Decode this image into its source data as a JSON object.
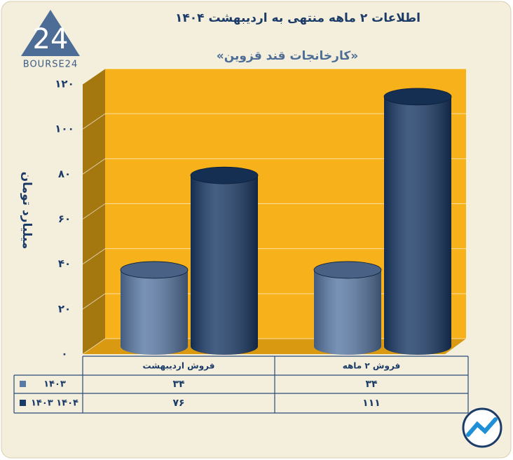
{
  "logo": {
    "mark": "24",
    "name": "BOURSE24"
  },
  "chart_data": {
    "type": "bar",
    "title": "اطلاعات ۲ ماهه منتهی به اردیبهشت ۱۴۰۴",
    "subtitle": "«کارخانجات قند قزوین»",
    "y_label": "میلیارد تومان",
    "categories": [
      "فروش اردیبهشت",
      "فروش ۲  ماهه"
    ],
    "series": [
      {
        "name": "۱۴۰۳",
        "color": "#5a7aa6",
        "values": [
          34,
          34
        ],
        "value_labels": [
          "۳۴",
          "۳۴"
        ]
      },
      {
        "name": "۱۴۰۳ ۱۴۰۴",
        "color": "#1b3b68",
        "values": [
          76,
          111
        ],
        "value_labels": [
          "۷۶",
          "۱۱۱"
        ]
      }
    ],
    "ylim": [
      0,
      120
    ],
    "yticks": [
      {
        "value": 0,
        "label": "۰"
      },
      {
        "value": 20,
        "label": "۲۰"
      },
      {
        "value": 40,
        "label": "۴۰"
      },
      {
        "value": 60,
        "label": "۶۰"
      },
      {
        "value": 80,
        "label": "۸۰"
      },
      {
        "value": 100,
        "label": "۱۰۰"
      },
      {
        "value": 120,
        "label": "۱۲۰"
      }
    ],
    "grid": true
  }
}
